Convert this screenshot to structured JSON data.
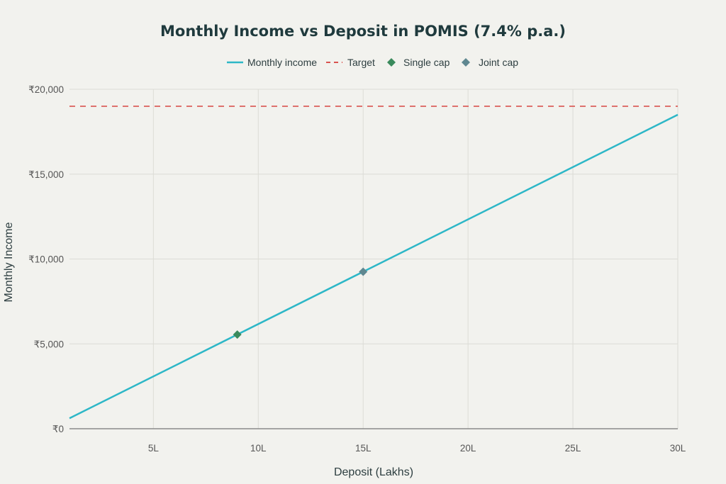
{
  "chart_data": {
    "type": "line",
    "title": "Monthly Income vs Deposit in POMIS (7.4% p.a.)",
    "xlabel": "Deposit (Lakhs)",
    "ylabel": "Monthly Income",
    "xlim": [
      1,
      30
    ],
    "ylim": [
      0,
      20000
    ],
    "x_ticks": [
      {
        "value": 5,
        "label": "5L"
      },
      {
        "value": 10,
        "label": "10L"
      },
      {
        "value": 15,
        "label": "15L"
      },
      {
        "value": 20,
        "label": "20L"
      },
      {
        "value": 25,
        "label": "25L"
      },
      {
        "value": 30,
        "label": "30L"
      }
    ],
    "y_ticks": [
      {
        "value": 0,
        "label": "₹0"
      },
      {
        "value": 5000,
        "label": "₹5,000"
      },
      {
        "value": 10000,
        "label": "₹10,000"
      },
      {
        "value": 15000,
        "label": "₹15,000"
      },
      {
        "value": 20000,
        "label": "₹20,000"
      }
    ],
    "grid": true,
    "legend_position": "top-center",
    "series": [
      {
        "name": "Monthly income",
        "kind": "line",
        "color": "#2db7c7",
        "x": [
          1,
          30
        ],
        "y": [
          617,
          18500
        ]
      },
      {
        "name": "Target",
        "kind": "hline",
        "color": "#d9534f",
        "y": 19000
      },
      {
        "name": "Single cap",
        "kind": "marker",
        "color": "#3a8a5c",
        "x": [
          9
        ],
        "y": [
          5550
        ]
      },
      {
        "name": "Joint cap",
        "kind": "marker",
        "color": "#5f8790",
        "x": [
          15
        ],
        "y": [
          9250
        ]
      }
    ]
  }
}
